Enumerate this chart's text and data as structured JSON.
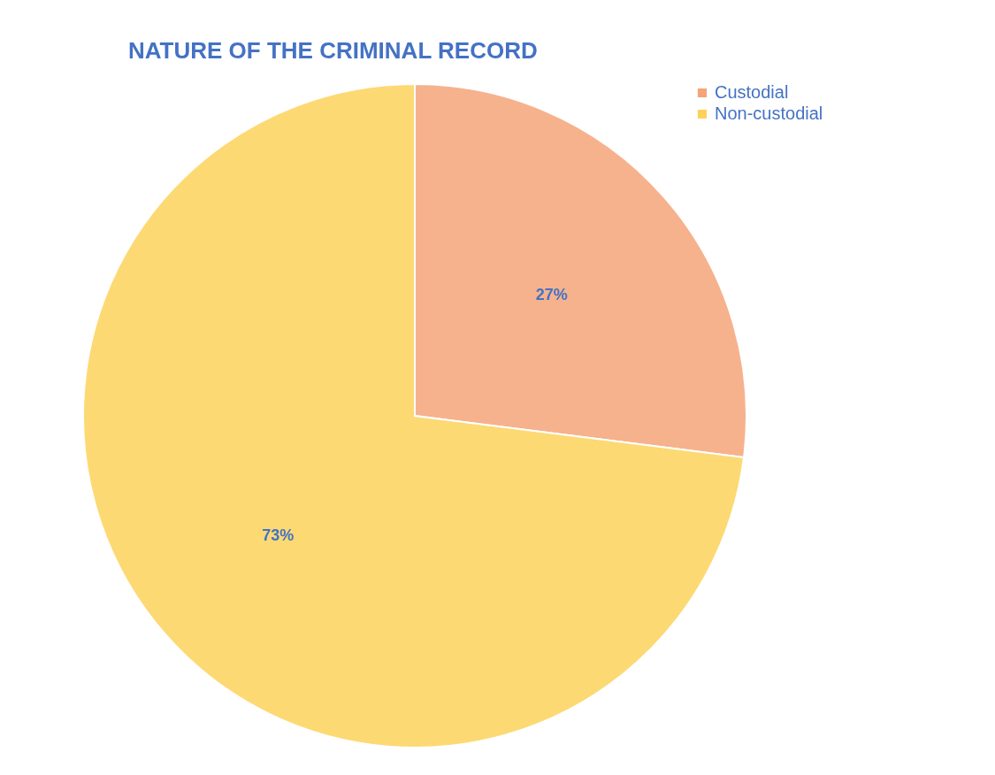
{
  "chart_data": {
    "type": "pie",
    "title": "NATURE OF THE CRIMINAL RECORD",
    "categories": [
      "Custodial",
      "Non-custodial"
    ],
    "values": [
      27,
      73
    ],
    "colors": [
      "#f4a479",
      "#fdd25a"
    ],
    "value_labels": [
      "27%",
      "73%"
    ],
    "legend": "right"
  }
}
